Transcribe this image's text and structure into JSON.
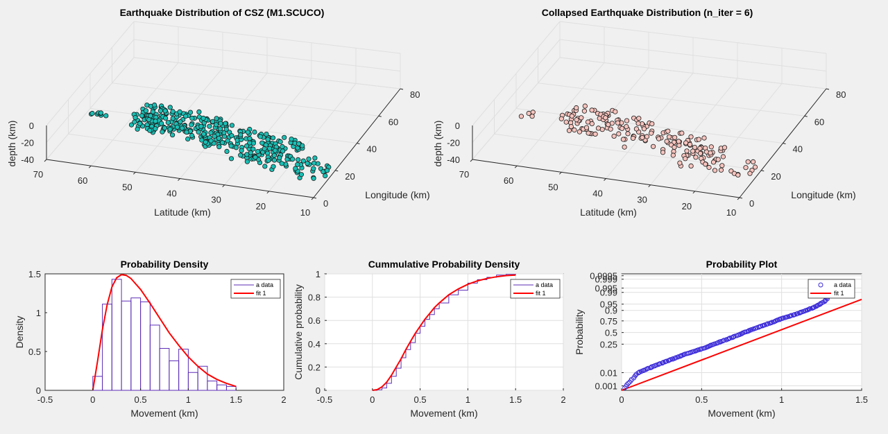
{
  "colors": {
    "background": "#f0f0f0",
    "scatter_fill": "#1abfb5",
    "collapsed_fill": "#f6c3bd",
    "hist_edge": "#5b2bb5",
    "fit_line": "#ff0000",
    "probplot_marker": "#3b2bd8"
  },
  "chart_data": [
    {
      "type": "scatter3d",
      "title": "Earthquake Distribution of CSZ (M1.SCUCO)",
      "xlabel": "Latitude (km)",
      "ylabel": "Longitude (km)",
      "zlabel": "depth (km)",
      "xlim": [
        10,
        70
      ],
      "ylim": [
        0,
        80
      ],
      "zlim": [
        -40,
        0
      ],
      "xticks": [
        "70",
        "60",
        "50",
        "40",
        "30",
        "20",
        "10"
      ],
      "yticks": [
        "0",
        "20",
        "40",
        "60",
        "80"
      ],
      "zticks": [
        "0",
        "-20",
        "-40"
      ],
      "grid": true,
      "point_count": 380,
      "clusters": [
        {
          "lat": [
            66,
            64
          ],
          "lon": [
            28,
            33
          ],
          "n": 8
        },
        {
          "lat": [
            58,
            40
          ],
          "lon": [
            30,
            44
          ],
          "n": 150
        },
        {
          "lat": [
            42,
            22
          ],
          "lon": [
            26,
            42
          ],
          "n": 140
        },
        {
          "lat": [
            32,
            14
          ],
          "lon": [
            20,
            33
          ],
          "n": 60
        },
        {
          "lat": [
            56,
            48
          ],
          "lon": [
            26,
            31
          ],
          "n": 22
        }
      ]
    },
    {
      "type": "scatter3d",
      "title": "Collapsed Earthquake Distribution (n_iter = 6)",
      "xlabel": "Latitude (km)",
      "ylabel": "Longitude (km)",
      "zlabel": "depth (km)",
      "xlim": [
        10,
        70
      ],
      "ylim": [
        0,
        80
      ],
      "zlim": [
        -40,
        0
      ],
      "xticks": [
        "70",
        "60",
        "50",
        "40",
        "30",
        "20",
        "10"
      ],
      "yticks": [
        "0",
        "20",
        "40",
        "60",
        "80"
      ],
      "zticks": [
        "0",
        "-20",
        "-40"
      ],
      "grid": true,
      "point_count": 190
    },
    {
      "type": "bar",
      "title": "Probability Density",
      "xlabel": "Movement (km)",
      "ylabel": "Density",
      "xlim": [
        -0.5,
        2
      ],
      "ylim": [
        0,
        1.5
      ],
      "xticks": [
        "-0.5",
        "0",
        "0.5",
        "1",
        "1.5",
        "2"
      ],
      "yticks": [
        "0",
        "0.5",
        "1",
        "1.5"
      ],
      "bin_edges": [
        0,
        0.1,
        0.2,
        0.3,
        0.4,
        0.5,
        0.6,
        0.7,
        0.8,
        0.9,
        1.0,
        1.1,
        1.2,
        1.3,
        1.4,
        1.5
      ],
      "values": [
        0.18,
        1.11,
        1.43,
        1.15,
        1.19,
        1.14,
        0.84,
        0.54,
        0.38,
        0.53,
        0.23,
        0.31,
        0.12,
        0.07,
        0.05
      ],
      "fit": {
        "name": "fit 1",
        "x": [
          0,
          0.05,
          0.1,
          0.15,
          0.2,
          0.25,
          0.3,
          0.35,
          0.4,
          0.45,
          0.5,
          0.6,
          0.7,
          0.8,
          0.9,
          1.0,
          1.1,
          1.2,
          1.3,
          1.4,
          1.5
        ],
        "y": [
          0,
          0.38,
          0.78,
          1.1,
          1.33,
          1.45,
          1.49,
          1.48,
          1.44,
          1.37,
          1.3,
          1.12,
          0.93,
          0.74,
          0.58,
          0.43,
          0.31,
          0.21,
          0.14,
          0.09,
          0.05
        ]
      },
      "legend": [
        "a data",
        "fit 1"
      ],
      "legend_position": "top-right",
      "grid": false
    },
    {
      "type": "line",
      "title": "Cummulative Probability Density",
      "xlabel": "Movement (km)",
      "ylabel": "Cumulative probability",
      "xlim": [
        -0.5,
        2
      ],
      "ylim": [
        0,
        1
      ],
      "xticks": [
        "-0.5",
        "0",
        "0.5",
        "1",
        "1.5",
        "2"
      ],
      "yticks": [
        "0",
        "0.2",
        "0.4",
        "0.6",
        "0.8",
        "1"
      ],
      "series": [
        {
          "name": "a data",
          "x": [
            0,
            0.05,
            0.1,
            0.15,
            0.2,
            0.25,
            0.3,
            0.35,
            0.4,
            0.45,
            0.5,
            0.55,
            0.6,
            0.65,
            0.7,
            0.8,
            0.9,
            1.0,
            1.1,
            1.2,
            1.3,
            1.4,
            1.5
          ],
          "y": [
            0,
            0.005,
            0.02,
            0.06,
            0.12,
            0.19,
            0.28,
            0.35,
            0.41,
            0.49,
            0.55,
            0.61,
            0.65,
            0.7,
            0.75,
            0.82,
            0.86,
            0.92,
            0.95,
            0.97,
            0.99,
            0.995,
            1.0
          ]
        },
        {
          "name": "fit 1",
          "x": [
            0,
            0.05,
            0.1,
            0.15,
            0.2,
            0.25,
            0.3,
            0.35,
            0.4,
            0.45,
            0.5,
            0.55,
            0.6,
            0.65,
            0.7,
            0.8,
            0.9,
            1.0,
            1.1,
            1.2,
            1.3,
            1.4,
            1.5
          ],
          "y": [
            0,
            0.006,
            0.03,
            0.07,
            0.13,
            0.2,
            0.27,
            0.35,
            0.42,
            0.49,
            0.55,
            0.61,
            0.66,
            0.71,
            0.75,
            0.82,
            0.87,
            0.91,
            0.94,
            0.96,
            0.975,
            0.985,
            0.99
          ]
        }
      ],
      "legend": [
        "a data",
        "fit 1"
      ],
      "legend_position": "top-right",
      "grid": true
    },
    {
      "type": "scatter",
      "title": "Probability Plot",
      "xlabel": "Movement (km)",
      "ylabel": "Probability",
      "xlim": [
        0,
        1.5
      ],
      "xticks": [
        "0",
        "0.5",
        "1",
        "1.5"
      ],
      "yticks": [
        "0.001",
        "0.01",
        "0.25",
        "0.5",
        "0.75",
        "0.9",
        "0.95",
        "0.99",
        "0.995",
        "0.999",
        "0.9995"
      ],
      "ytick_values": [
        0.001,
        0.01,
        0.25,
        0.5,
        0.75,
        0.9,
        0.95,
        0.99,
        0.995,
        0.999,
        0.9995
      ],
      "ylim_z": [
        -3.35,
        3.4
      ],
      "points_z": {
        "x": [
          0.02,
          0.1,
          0.2,
          0.3,
          0.4,
          0.5,
          0.6,
          0.7,
          0.8,
          0.9,
          1.0,
          1.1,
          1.15,
          1.2,
          1.25,
          1.28,
          1.3,
          1.33,
          1.35
        ],
        "z": [
          -3.2,
          -2.35,
          -1.95,
          -1.6,
          -1.25,
          -0.95,
          -0.6,
          -0.25,
          0.12,
          0.45,
          0.8,
          1.1,
          1.28,
          1.45,
          1.7,
          1.9,
          2.15,
          2.4,
          2.6
        ]
      },
      "fit_z": {
        "name": "fit 1",
        "x": [
          0,
          1.5
        ],
        "z": [
          -3.35,
          1.92
        ]
      },
      "legend": [
        "a data",
        "fit 1"
      ],
      "legend_position": "top-right",
      "grid": true
    }
  ]
}
